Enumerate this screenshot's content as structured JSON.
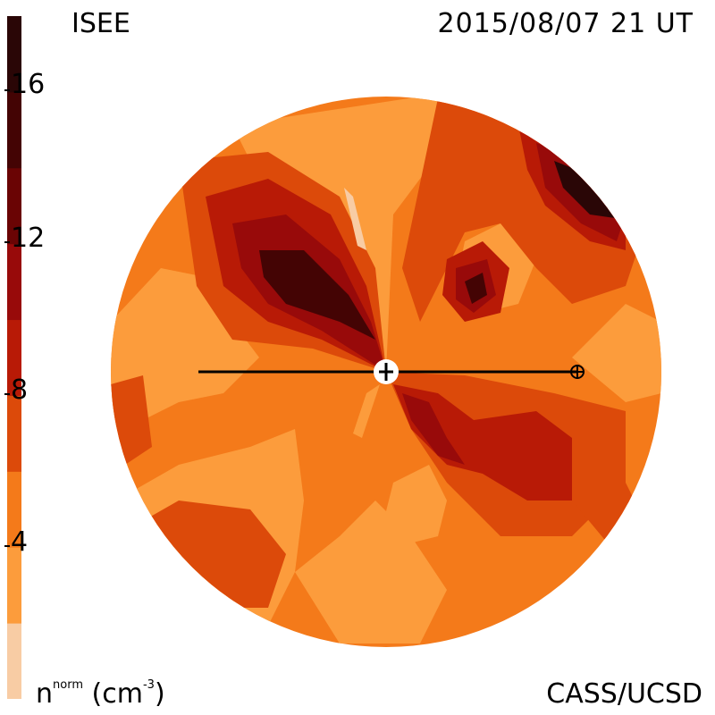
{
  "header": {
    "source": "ISEE",
    "datetime": "2015/08/07 21 UT"
  },
  "footer": {
    "credit": "CASS/UCSD",
    "quantity_base": "n",
    "quantity_sup": "norm",
    "unit_open": " (cm",
    "unit_sup": "-3",
    "unit_close": ")"
  },
  "colorbar": {
    "min": 0,
    "max": 18,
    "tick_values": [
      4,
      8,
      12,
      16
    ],
    "tick_labels": [
      "4",
      "8",
      "12",
      "16"
    ],
    "colors": [
      "#f8cca4",
      "#fc9c3c",
      "#f47a1a",
      "#dc4a0a",
      "#b81a06",
      "#980a0a",
      "#6a0404",
      "#440404",
      "#2a0606"
    ]
  },
  "map": {
    "earth_symbol": "earth-symbol-icon",
    "sun_symbol": "sun-marker-icon"
  }
}
